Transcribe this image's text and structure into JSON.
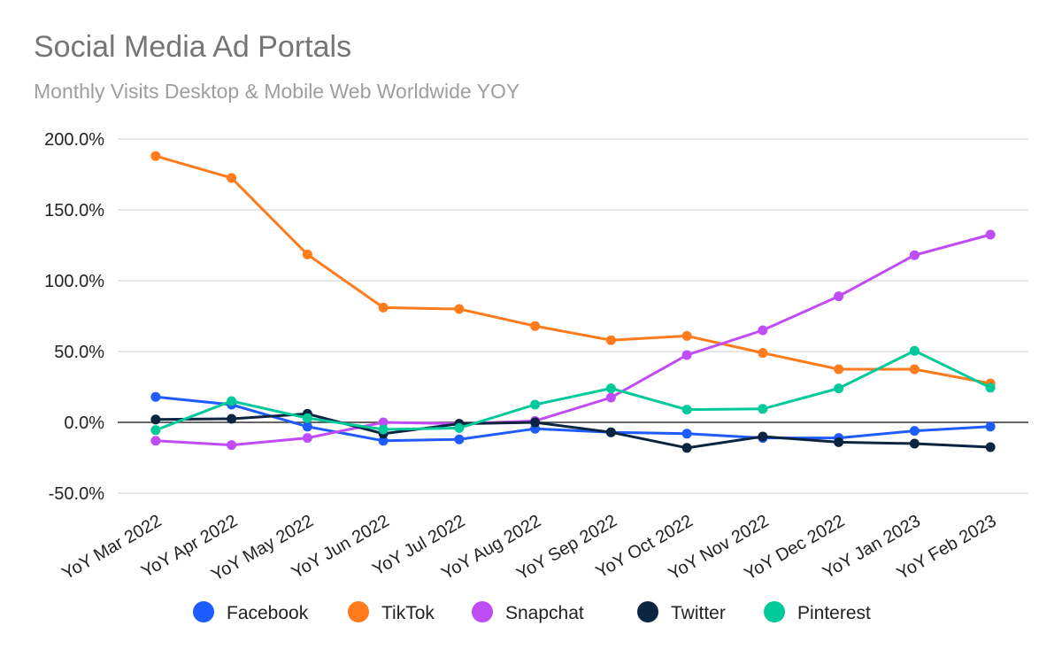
{
  "chart_data": {
    "type": "line",
    "title": "Social Media Ad Portals",
    "subtitle": "Monthly Visits Desktop & Mobile Web Worldwide YOY",
    "xlabel": "",
    "ylabel": "",
    "ylim": [
      -50,
      200
    ],
    "yticks": [
      200,
      150,
      100,
      50,
      0,
      -50
    ],
    "ytick_labels": [
      "200.0%",
      "150.0%",
      "100.0%",
      "50.0%",
      "0.0%",
      "-50.0%"
    ],
    "grid": true,
    "legend_placement": "bottom",
    "categories": [
      "YoY Mar 2022",
      "YoY Apr 2022",
      "YoY May 2022",
      "YoY Jun 2022",
      "YoY Jul 2022",
      "YoY Aug 2022",
      "YoY Sep 2022",
      "YoY Oct 2022",
      "YoY Nov 2022",
      "YoY Dec 2022",
      "YoY Jan 2023",
      "YoY Feb 2023"
    ],
    "series": [
      {
        "name": "Facebook",
        "color": "#1f5cff",
        "values": [
          18,
          12.5,
          -3,
          -13,
          -12,
          -4.5,
          -7,
          -8,
          -11,
          -11,
          -6,
          -3
        ]
      },
      {
        "name": "TikTok",
        "color": "#ff7b1c",
        "values": [
          188,
          172.5,
          118.5,
          81,
          80,
          68,
          58,
          61,
          49,
          37.5,
          37.5,
          27.5
        ]
      },
      {
        "name": "Snapchat",
        "color": "#c04cf5",
        "values": [
          -13,
          -16,
          -11,
          0,
          -1,
          1,
          17.5,
          47.5,
          65,
          89,
          118,
          132.5
        ]
      },
      {
        "name": "Twitter",
        "color": "#0b2540",
        "values": [
          2,
          2.5,
          6,
          -8,
          -1,
          0,
          -7,
          -18,
          -10,
          -14,
          -15,
          -17.5
        ]
      },
      {
        "name": "Pinterest",
        "color": "#00c99a",
        "values": [
          -5.5,
          15,
          3,
          -5,
          -4,
          12.5,
          24,
          9,
          9.5,
          24,
          50.5,
          24.5
        ]
      }
    ]
  }
}
